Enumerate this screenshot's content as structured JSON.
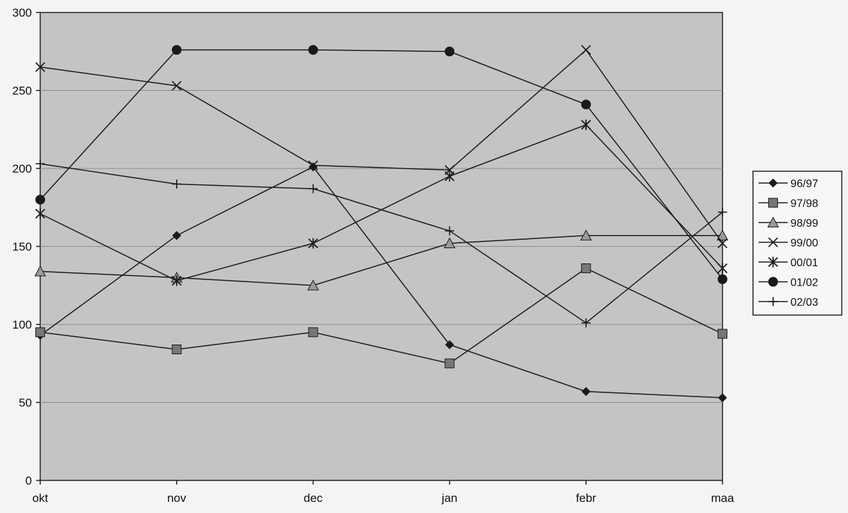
{
  "chart_data": {
    "type": "line",
    "title": "",
    "xlabel": "",
    "ylabel": "",
    "categories": [
      "okt",
      "nov",
      "dec",
      "jan",
      "febr",
      "maa"
    ],
    "ylim": [
      0,
      300
    ],
    "yticks": [
      0,
      50,
      100,
      150,
      200,
      250,
      300
    ],
    "grid": true,
    "legend": "right",
    "colors": {
      "plot_background": "#c4c4c4",
      "page_background": "#f4f4f4",
      "gridline": "#8c8c8c",
      "line": "#1a1a1a"
    },
    "series": [
      {
        "name": "96/97",
        "marker": "diamond",
        "values": [
          93,
          157,
          201,
          87,
          57,
          53
        ]
      },
      {
        "name": "97/98",
        "marker": "square",
        "values": [
          95,
          84,
          95,
          75,
          136,
          94
        ]
      },
      {
        "name": "98/99",
        "marker": "triangle",
        "values": [
          134,
          130,
          125,
          152,
          157,
          157
        ]
      },
      {
        "name": "99/00",
        "marker": "x",
        "values": [
          265,
          253,
          202,
          199,
          276,
          152
        ]
      },
      {
        "name": "00/01",
        "marker": "asterisk",
        "values": [
          171,
          128,
          152,
          195,
          228,
          136
        ]
      },
      {
        "name": "01/02",
        "marker": "circle",
        "values": [
          180,
          276,
          276,
          275,
          241,
          129
        ]
      },
      {
        "name": "02/03",
        "marker": "plus",
        "values": [
          203,
          190,
          187,
          160,
          101,
          172
        ]
      }
    ]
  }
}
